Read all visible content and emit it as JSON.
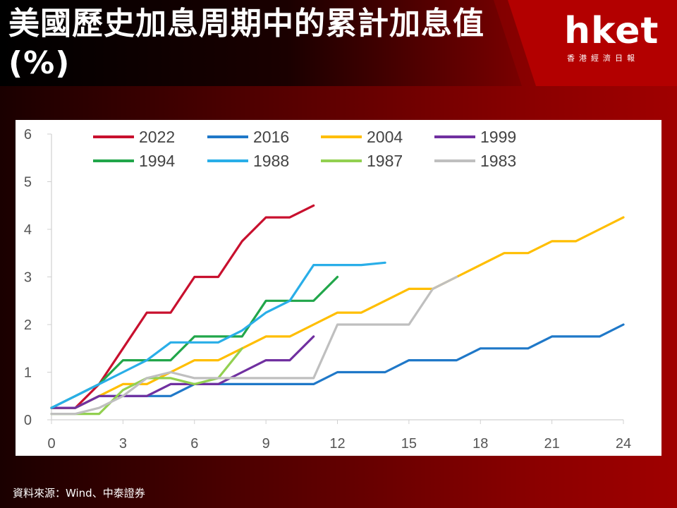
{
  "title": "美國歷史加息周期中的累計加息值(%)",
  "logo": {
    "main": "hket",
    "sub": "香港經濟日報"
  },
  "source": "資料來源：Wind、中泰證券",
  "colors": {
    "2022": "#c8102e",
    "2016": "#1f78c8",
    "2004": "#ffbe00",
    "1999": "#7030a0",
    "1994": "#21a64a",
    "1988": "#29aee8",
    "1987": "#92d050",
    "1983": "#bfbfbf"
  },
  "chart_data": {
    "type": "line",
    "xlim": [
      0,
      24
    ],
    "ylim": [
      0,
      6
    ],
    "xticks": [
      0,
      3,
      6,
      9,
      12,
      15,
      18,
      21,
      24
    ],
    "yticks": [
      0,
      1,
      2,
      3,
      4,
      5,
      6
    ],
    "legend_position": "top",
    "series": [
      {
        "name": "2022",
        "x": [
          0,
          1,
          2,
          3,
          4,
          5,
          6,
          7,
          8,
          9,
          10,
          11
        ],
        "values": [
          0.25,
          0.25,
          0.75,
          1.5,
          2.25,
          2.25,
          3.0,
          3.0,
          3.75,
          4.25,
          4.25,
          4.5
        ]
      },
      {
        "name": "2016",
        "x": [
          0,
          1,
          2,
          3,
          4,
          5,
          6,
          7,
          8,
          9,
          10,
          11,
          12,
          13,
          14,
          15,
          16,
          17,
          18,
          19,
          20,
          21,
          22,
          23,
          24
        ],
        "values": [
          0.25,
          0.25,
          0.5,
          0.5,
          0.5,
          0.5,
          0.75,
          0.75,
          0.75,
          0.75,
          0.75,
          0.75,
          1.0,
          1.0,
          1.0,
          1.25,
          1.25,
          1.25,
          1.5,
          1.5,
          1.5,
          1.75,
          1.75,
          1.75,
          2.0
        ]
      },
      {
        "name": "2004",
        "x": [
          0,
          1,
          2,
          3,
          4,
          5,
          6,
          7,
          8,
          9,
          10,
          11,
          12,
          13,
          14,
          15,
          16,
          17,
          18,
          19,
          20,
          21,
          22,
          23,
          24
        ],
        "values": [
          0.25,
          0.25,
          0.5,
          0.75,
          0.75,
          1.0,
          1.25,
          1.25,
          1.5,
          1.75,
          1.75,
          2.0,
          2.25,
          2.25,
          2.5,
          2.75,
          2.75,
          3.0,
          3.25,
          3.5,
          3.5,
          3.75,
          3.75,
          4.0,
          4.25
        ]
      },
      {
        "name": "1999",
        "x": [
          0,
          1,
          2,
          3,
          4,
          5,
          6,
          7,
          8,
          9,
          10,
          11
        ],
        "values": [
          0.25,
          0.25,
          0.5,
          0.5,
          0.5,
          0.75,
          0.75,
          0.75,
          1.0,
          1.25,
          1.25,
          1.75
        ]
      },
      {
        "name": "1994",
        "x": [
          0,
          1,
          2,
          3,
          4,
          5,
          6,
          7,
          8,
          9,
          10,
          11,
          12
        ],
        "values": [
          0.25,
          0.5,
          0.75,
          1.25,
          1.25,
          1.25,
          1.75,
          1.75,
          1.75,
          2.5,
          2.5,
          2.5,
          3.0
        ]
      },
      {
        "name": "1988",
        "x": [
          0,
          1,
          2,
          3,
          4,
          5,
          6,
          7,
          8,
          9,
          10,
          11,
          12,
          13,
          14
        ],
        "values": [
          0.25,
          0.5,
          0.75,
          1.0,
          1.25,
          1.625,
          1.625,
          1.625,
          1.875,
          2.25,
          2.5,
          3.25,
          3.25,
          3.25,
          3.3
        ]
      },
      {
        "name": "1987",
        "x": [
          0,
          1,
          2,
          3,
          4,
          5,
          6,
          7,
          8
        ],
        "values": [
          0.125,
          0.125,
          0.125,
          0.625,
          0.875,
          0.875,
          0.75,
          0.875,
          1.5
        ]
      },
      {
        "name": "1983",
        "x": [
          0,
          1,
          2,
          3,
          4,
          5,
          6,
          7,
          8,
          9,
          10,
          11,
          12,
          13,
          14,
          15,
          16,
          17
        ],
        "values": [
          0.125,
          0.125,
          0.25,
          0.5,
          0.875,
          1.0,
          0.875,
          0.875,
          0.875,
          0.875,
          0.875,
          0.875,
          2.0,
          2.0,
          2.0,
          2.0,
          2.75,
          3.0
        ]
      }
    ]
  }
}
